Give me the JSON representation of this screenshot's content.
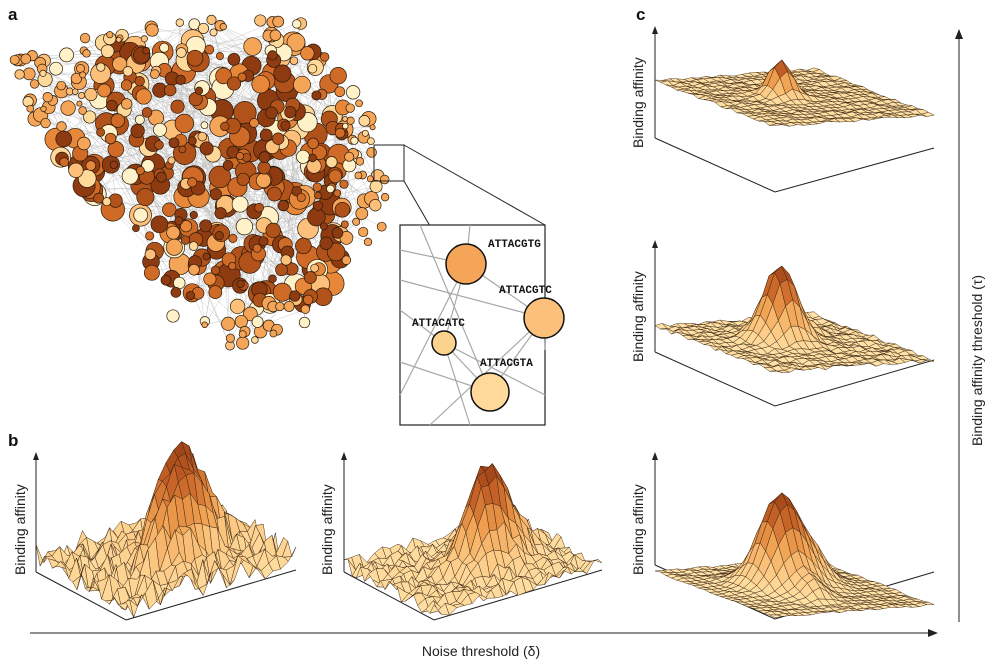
{
  "panels": {
    "a": {
      "letter": "a",
      "zoom_labels": [
        "ATTACGTG",
        "ATTACGTC",
        "ATTACATC",
        "ATTACGTA"
      ]
    },
    "b": {
      "letter": "b",
      "ylabel": "Binding affinity",
      "xlabel": "Noise threshold (δ)"
    },
    "c": {
      "letter": "c",
      "ylabel": "Binding affinity",
      "side_label": "Binding affinity threshold (τ)"
    }
  },
  "colors": {
    "node_palette": [
      "#fff1c8",
      "#ffd99a",
      "#fcc07a",
      "#f5a558",
      "#e6873a",
      "#cf6a27",
      "#b2521b",
      "#8f3b12"
    ],
    "edge": "#bdbdbd",
    "outline": "#111111"
  }
}
